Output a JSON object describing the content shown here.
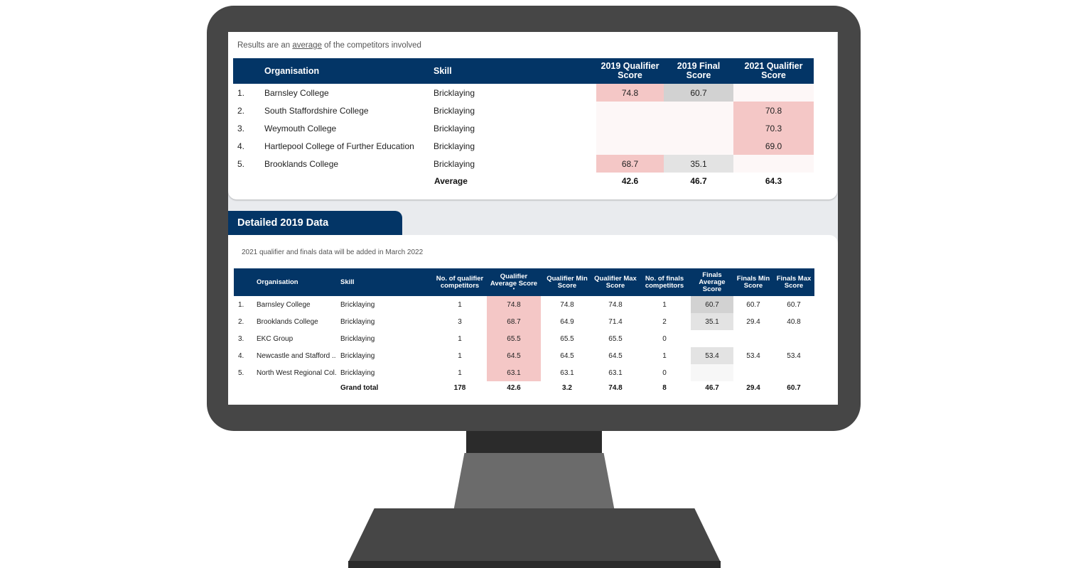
{
  "summary": {
    "note_prefix": "Results are an ",
    "note_underlined": "average",
    "note_suffix": " of the competitors involved",
    "headers": {
      "organisation": "Organisation",
      "skill": "Skill",
      "q2019": "2019 Qualifier Score",
      "f2019": "2019 Final Score",
      "q2021": "2021 Qualifier Score"
    },
    "rows": [
      {
        "rank": "1.",
        "organisation": "Barnsley College",
        "skill": "Bricklaying",
        "q2019": "74.8",
        "f2019": "60.7",
        "q2021": ""
      },
      {
        "rank": "2.",
        "organisation": "South Staffordshire College",
        "skill": "Bricklaying",
        "q2019": "",
        "f2019": "",
        "q2021": "70.8"
      },
      {
        "rank": "3.",
        "organisation": "Weymouth College",
        "skill": "Bricklaying",
        "q2019": "",
        "f2019": "",
        "q2021": "70.3"
      },
      {
        "rank": "4.",
        "organisation": "Hartlepool College of Further Education",
        "skill": "Bricklaying",
        "q2019": "",
        "f2019": "",
        "q2021": "69.0"
      },
      {
        "rank": "5.",
        "organisation": "Brooklands College",
        "skill": "Bricklaying",
        "q2019": "68.7",
        "f2019": "35.1",
        "q2021": ""
      }
    ],
    "average": {
      "label": "Average",
      "q2019": "42.6",
      "f2019": "46.7",
      "q2021": "64.3"
    }
  },
  "detail": {
    "tab_title": "Detailed 2019 Data",
    "note": "2021 qualifier and finals data will be added in March 2022",
    "headers": {
      "organisation": "Organisation",
      "skill": "Skill",
      "no_qualifier": "No. of qualifier competitors",
      "q_avg": "Qualifier Average Score",
      "q_avg_sort": "•",
      "q_min": "Qualifier Min Score",
      "q_max": "Qualifier Max Score",
      "no_finals": "No. of finals competitors",
      "f_avg": "Finals Average Score",
      "f_min": "Finals Min Score",
      "f_max": "Finals Max Score"
    },
    "rows": [
      {
        "rank": "1.",
        "organisation": "Barnsley College",
        "skill": "Bricklaying",
        "no_qualifier": "1",
        "q_avg": "74.8",
        "q_min": "74.8",
        "q_max": "74.8",
        "no_finals": "1",
        "f_avg": "60.7",
        "f_min": "60.7",
        "f_max": "60.7"
      },
      {
        "rank": "2.",
        "organisation": "Brooklands College",
        "skill": "Bricklaying",
        "no_qualifier": "3",
        "q_avg": "68.7",
        "q_min": "64.9",
        "q_max": "71.4",
        "no_finals": "2",
        "f_avg": "35.1",
        "f_min": "29.4",
        "f_max": "40.8"
      },
      {
        "rank": "3.",
        "organisation": "EKC Group",
        "skill": "Bricklaying",
        "no_qualifier": "1",
        "q_avg": "65.5",
        "q_min": "65.5",
        "q_max": "65.5",
        "no_finals": "0",
        "f_avg": "",
        "f_min": "",
        "f_max": ""
      },
      {
        "rank": "4.",
        "organisation": "Newcastle and Stafford ...",
        "skill": "Bricklaying",
        "no_qualifier": "1",
        "q_avg": "64.5",
        "q_min": "64.5",
        "q_max": "64.5",
        "no_finals": "1",
        "f_avg": "53.4",
        "f_min": "53.4",
        "f_max": "53.4"
      },
      {
        "rank": "5.",
        "organisation": "North West Regional Col...",
        "skill": "Bricklaying",
        "no_qualifier": "1",
        "q_avg": "63.1",
        "q_min": "63.1",
        "q_max": "63.1",
        "no_finals": "0",
        "f_avg": "",
        "f_min": "",
        "f_max": ""
      }
    ],
    "total": {
      "label": "Grand total",
      "no_qualifier": "178",
      "q_avg": "42.6",
      "q_min": "3.2",
      "q_max": "74.8",
      "no_finals": "8",
      "f_avg": "46.7",
      "f_min": "29.4",
      "f_max": "60.7"
    }
  },
  "colors": {
    "header_navy": "#033566",
    "highlight_pink": "#f4c7c6",
    "highlight_grey": "#d2d2d2",
    "monitor": "#464646"
  }
}
